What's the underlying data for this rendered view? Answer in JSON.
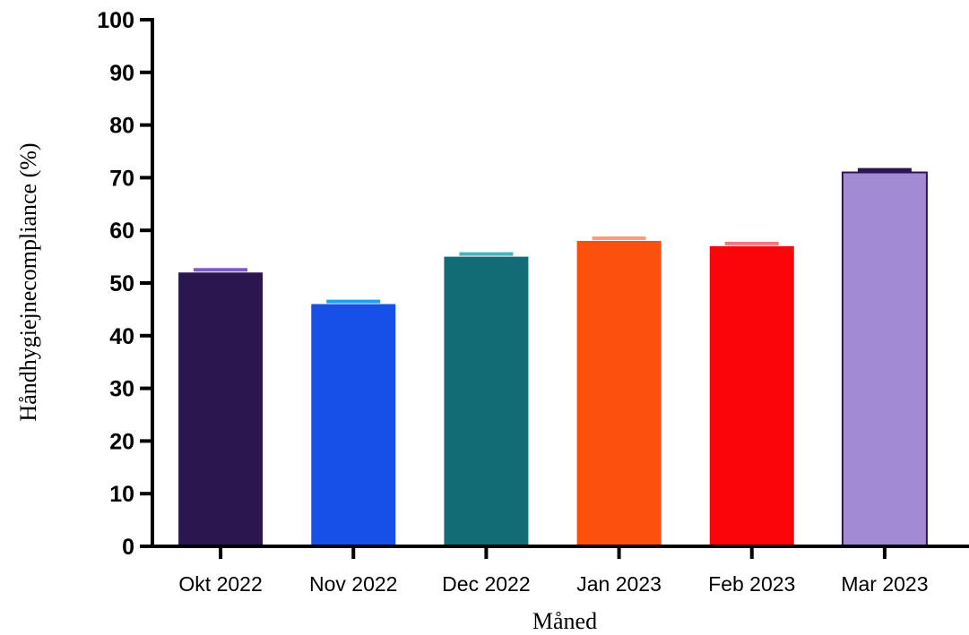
{
  "chart_data": {
    "type": "bar",
    "xlabel": "Måned",
    "ylabel": "Håndhygiejnecompliance (%)",
    "ylim": [
      0,
      100
    ],
    "yticks": [
      "0",
      "10",
      "20",
      "30",
      "40",
      "50",
      "60",
      "70",
      "80",
      "90",
      "100"
    ],
    "categories": [
      "Okt 2022",
      "Nov 2022",
      "Dec 2022",
      "Jan 2023",
      "Feb 2023",
      "Mar 2023"
    ],
    "values": [
      52,
      46,
      55,
      58,
      57,
      71
    ],
    "errors": [
      0.5,
      0.5,
      0.5,
      0.5,
      0.5,
      0.5
    ],
    "colors": [
      "#2c1650",
      "#1650e8",
      "#116c75",
      "#fa500c",
      "#f80409",
      "#a38bd3"
    ],
    "error_colors": [
      "#7e5cc0",
      "#1ea0f0",
      "#45b3bb",
      "#f89c80",
      "#f27979",
      "#2c1650"
    ],
    "grid": false,
    "legend": "none"
  }
}
